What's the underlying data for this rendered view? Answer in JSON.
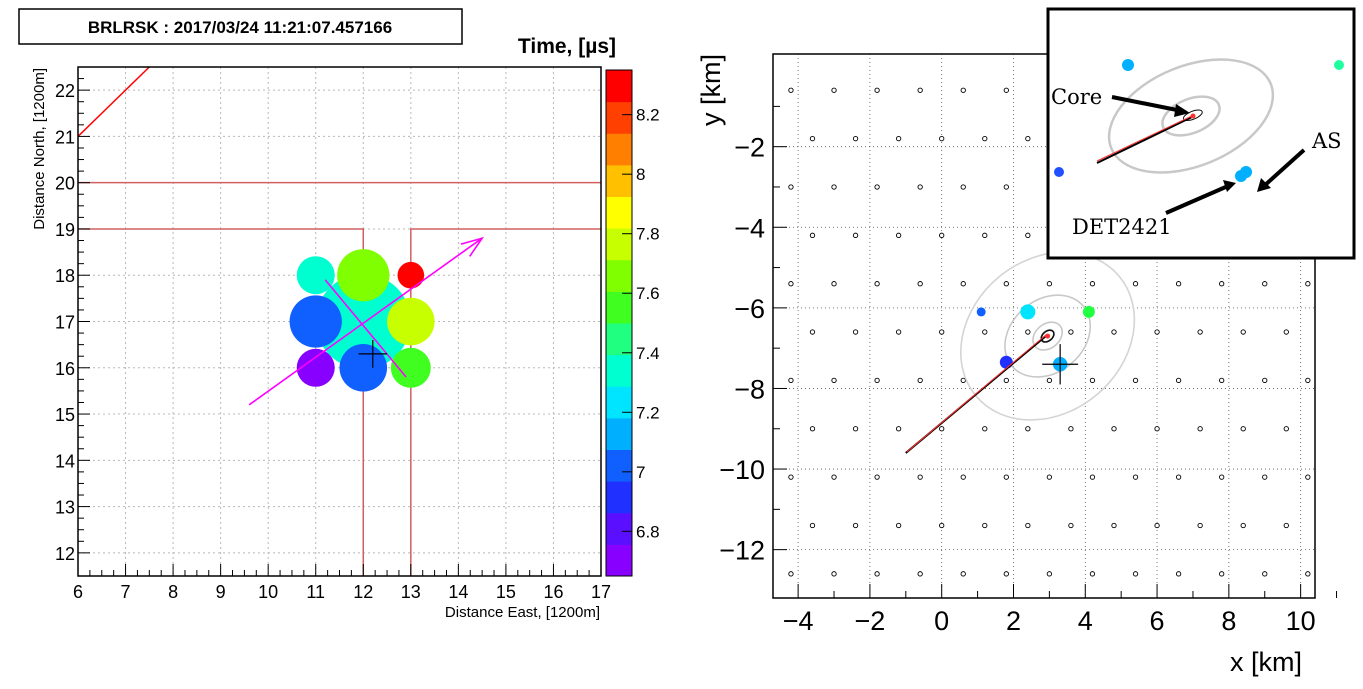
{
  "left_panel": {
    "title_box": "BRLRSK : 2017/03/24 11:21:07.457166",
    "colorbar_title": "Time,  [µs]",
    "colorbar_ticks": [
      "8.2",
      "8",
      "7.8",
      "7.6",
      "7.4",
      "7.2",
      "7",
      "6.8"
    ],
    "colorbar_tick_values": [
      8.2,
      8.0,
      7.8,
      7.6,
      7.4,
      7.2,
      7.0,
      6.8
    ],
    "colorbar_range": [
      6.65,
      8.35
    ],
    "colorbar_colors": [
      "#8800ff",
      "#5a10ff",
      "#2030ff",
      "#1060ff",
      "#00b0ff",
      "#00e5ff",
      "#00ffd0",
      "#20ff80",
      "#40ff20",
      "#80ff00",
      "#c8ff00",
      "#ffff00",
      "#ffc000",
      "#ff8000",
      "#ff4000",
      "#ff0000"
    ]
  },
  "right_panel": {
    "inset_labels": {
      "core": "Core",
      "as": "AS",
      "det": "DET2421"
    }
  },
  "chart_data": [
    {
      "type": "scatter",
      "title": "BRLRSK : 2017/03/24 11:21:07.457166",
      "xlabel": "Distance East,  [1200m]",
      "ylabel": "Distance North, [1200m]",
      "xlim": [
        6,
        17
      ],
      "ylim": [
        11.5,
        22.5
      ],
      "x_ticks": [
        "6",
        "7",
        "8",
        "9",
        "10",
        "11",
        "12",
        "13",
        "14",
        "15",
        "16",
        "17"
      ],
      "y_ticks": [
        "12",
        "13",
        "14",
        "15",
        "16",
        "17",
        "18",
        "19",
        "20",
        "21",
        "22"
      ],
      "x_tick_values": [
        6,
        7,
        8,
        9,
        10,
        11,
        12,
        13,
        14,
        15,
        16,
        17
      ],
      "y_tick_values": [
        12,
        13,
        14,
        15,
        16,
        17,
        18,
        19,
        20,
        21,
        22
      ],
      "grid": true,
      "points": [
        {
          "x": 12,
          "y": 17,
          "size": 1.0,
          "color": "#00ffd0"
        },
        {
          "x": 11,
          "y": 17,
          "size": 0.55,
          "color": "#1060ff"
        },
        {
          "x": 13,
          "y": 17,
          "size": 0.5,
          "color": "#c8ff00"
        },
        {
          "x": 12,
          "y": 18,
          "size": 0.55,
          "color": "#80ff00"
        },
        {
          "x": 11,
          "y": 18,
          "size": 0.4,
          "color": "#00ffd0"
        },
        {
          "x": 13,
          "y": 18,
          "size": 0.28,
          "color": "#ff0000"
        },
        {
          "x": 11,
          "y": 16,
          "size": 0.4,
          "color": "#8800ff"
        },
        {
          "x": 12,
          "y": 16,
          "size": 0.5,
          "color": "#1060ff"
        },
        {
          "x": 13,
          "y": 16,
          "size": 0.42,
          "color": "#40ff20"
        }
      ],
      "boundary_lines": [
        {
          "points": [
            [
              6,
              21
            ],
            [
              7.5,
              22.5
            ]
          ],
          "color": "#ff0000"
        },
        {
          "points": [
            [
              6,
              20
            ],
            [
              17,
              20
            ]
          ],
          "color": "#d06060"
        },
        {
          "points": [
            [
              6,
              19
            ],
            [
              12,
              19
            ],
            [
              12,
              11.5
            ]
          ],
          "color": "#d06060"
        },
        {
          "points": [
            [
              17,
              19
            ],
            [
              13,
              19
            ],
            [
              13,
              11.5
            ]
          ],
          "color": "#d06060"
        }
      ],
      "arrow": {
        "from": [
          9.6,
          15.2
        ],
        "to": [
          14.5,
          18.8
        ],
        "color": "#ff00ff"
      },
      "crossing_line": {
        "from": [
          11.2,
          17.9
        ],
        "to": [
          12.9,
          15.8
        ],
        "color": "#ff00ff"
      },
      "cross": {
        "x": 12.2,
        "y": 16.3,
        "half_width": 0.3
      },
      "colorbar_title": "Time,  [µs]"
    },
    {
      "type": "scatter",
      "xlabel": "x [km]",
      "ylabel": "y [km]",
      "xlim": [
        -4.7,
        10.4
      ],
      "ylim": [
        -13.2,
        0.3
      ],
      "x_ticks": [
        "−4",
        "−2",
        "0",
        "2",
        "4",
        "6",
        "8",
        "10"
      ],
      "y_ticks": [
        "−2",
        "−4",
        "−6",
        "−8",
        "−10",
        "−12"
      ],
      "x_tick_values": [
        -4,
        -2,
        0,
        2,
        4,
        6,
        8,
        10
      ],
      "y_tick_values": [
        -2,
        -4,
        -6,
        -8,
        -10,
        -12
      ],
      "grid": true,
      "detector_grid": {
        "pitch": 1.2,
        "x_start": -4.2,
        "y_start": -12.6,
        "cols": 13,
        "rows": 11,
        "odd_row_x_offset": 0.6
      },
      "hit_detectors": [
        {
          "x": 1.1,
          "y": -6.1,
          "size": 0.4,
          "color": "#1060ff"
        },
        {
          "x": 2.4,
          "y": -6.1,
          "size": 1.0,
          "color": "#00e5ff"
        },
        {
          "x": 4.1,
          "y": -6.1,
          "size": 0.7,
          "color": "#20ff40"
        },
        {
          "x": 1.8,
          "y": -7.35,
          "size": 0.8,
          "color": "#2030ff"
        },
        {
          "x": 3.3,
          "y": -7.4,
          "size": 0.95,
          "color": "#00b0ff"
        }
      ],
      "core": {
        "x": 2.95,
        "y": -6.7
      },
      "contours": [
        {
          "rx": 0.2,
          "ry": 0.12,
          "color": "#111111"
        },
        {
          "rx": 0.45,
          "ry": 0.3,
          "color": "#c8c8c8"
        },
        {
          "rx": 1.3,
          "ry": 0.9,
          "color": "#c8c8c8"
        },
        {
          "rx": 2.6,
          "ry": 1.9,
          "color": "#d4d4d4"
        }
      ],
      "contour_rotation_deg": 40,
      "shower_axis": {
        "from": [
          -1.0,
          -9.6
        ],
        "to": [
          2.9,
          -6.7
        ]
      },
      "cross": {
        "x": 3.3,
        "y": -7.4,
        "half_width": 0.5
      }
    }
  ]
}
